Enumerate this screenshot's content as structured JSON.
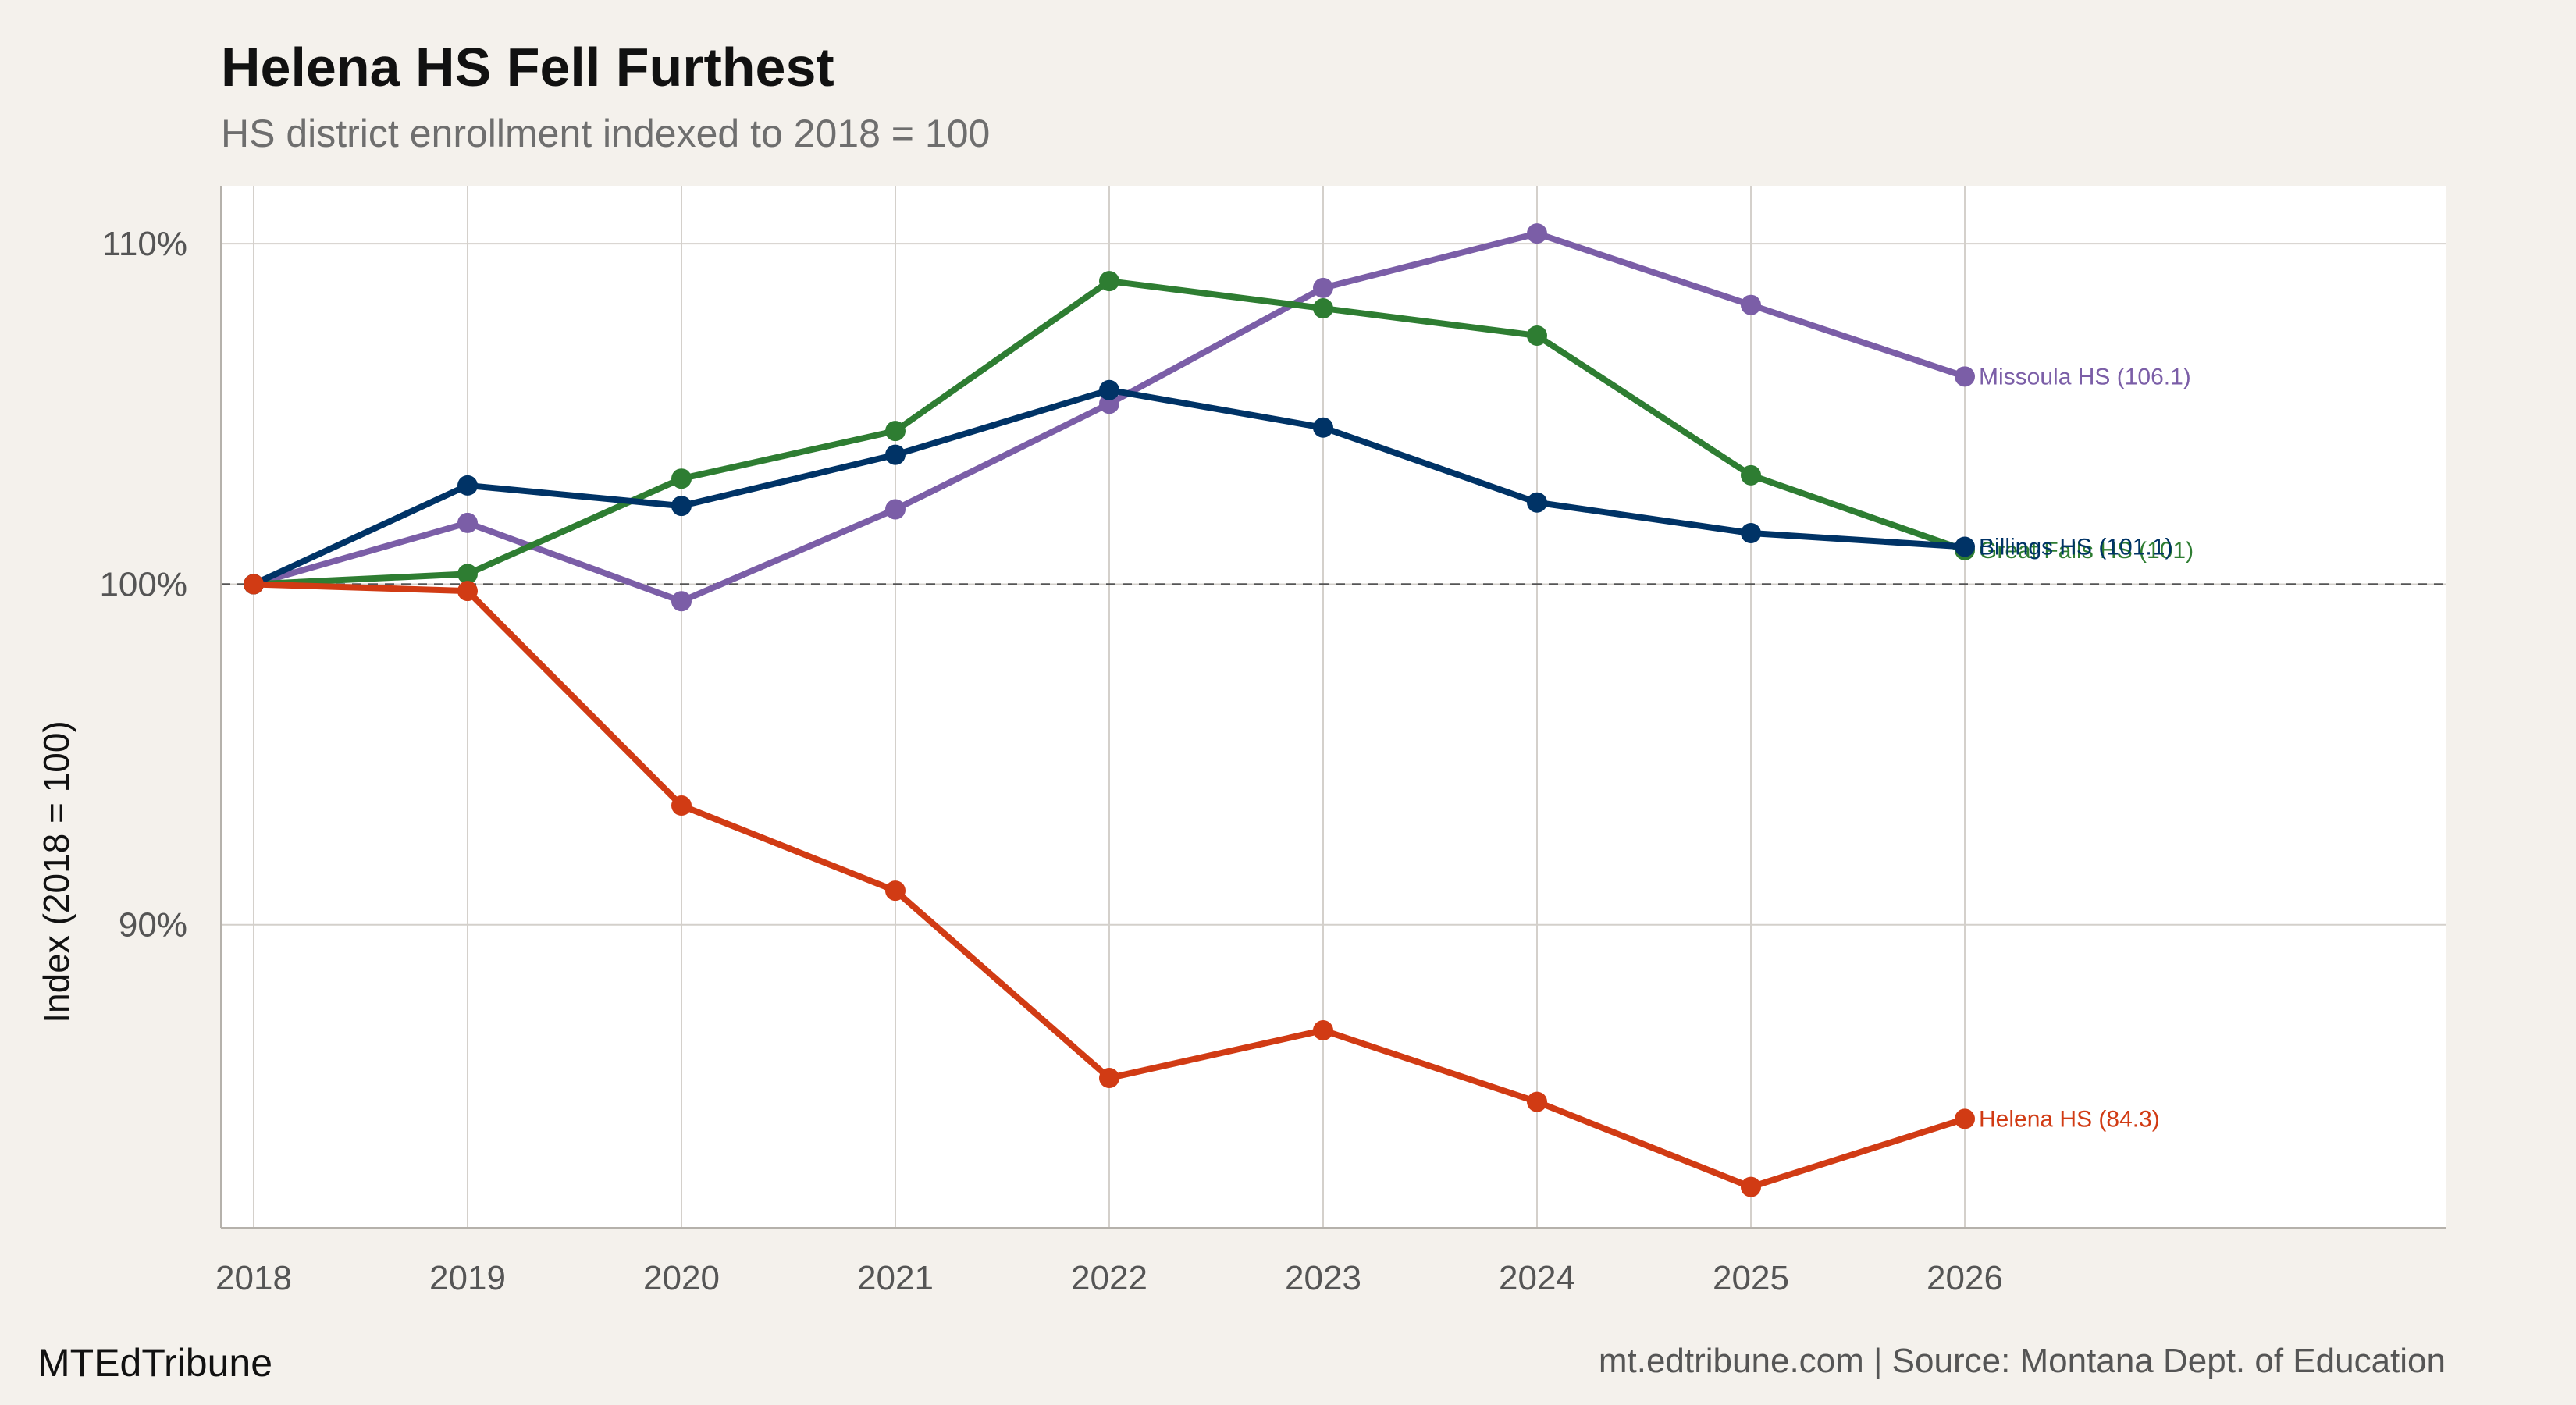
{
  "header": {
    "title": "Helena HS Fell Furthest",
    "subtitle": "HS district enrollment indexed to 2018 = 100"
  },
  "footer": {
    "brand": "MTEdTribune",
    "source": "mt.edtribune.com | Source: Montana Dept. of Education"
  },
  "colors": {
    "background": "#f4f1ec",
    "panel": "#ffffff",
    "grid": "#d4d0cb",
    "reference": "#555555"
  },
  "chart_data": {
    "type": "line",
    "title": "Helena HS Fell Furthest",
    "subtitle": "HS district enrollment indexed to 2018 = 100",
    "xlabel": "",
    "ylabel": "Index (2018 = 100)",
    "x": [
      2018,
      2019,
      2020,
      2021,
      2022,
      2023,
      2024,
      2025,
      2026
    ],
    "xlim": [
      2017.9,
      2028.5
    ],
    "ylim": [
      81.1,
      111.7
    ],
    "y_ticks": [
      90,
      100,
      110
    ],
    "y_tick_labels": [
      "90%",
      "100%",
      "110%"
    ],
    "x_tick_labels": [
      "2018",
      "2019",
      "2020",
      "2021",
      "2022",
      "2023",
      "2024",
      "2025",
      "2026"
    ],
    "reference_line": 100,
    "grid": true,
    "legend": "direct labels at line ends",
    "series": [
      {
        "name": "Missoula HS",
        "color": "#7b5ea7",
        "values": [
          100,
          101.8,
          99.5,
          102.2,
          105.3,
          108.7,
          110.3,
          108.2,
          106.1
        ],
        "end_label": "Missoula HS (106.1)"
      },
      {
        "name": "Great Falls HS",
        "color": "#2e7d32",
        "values": [
          100,
          100.3,
          103.1,
          104.5,
          108.9,
          108.1,
          107.3,
          103.2,
          101.0
        ],
        "end_label": "Great Falls HS (101)"
      },
      {
        "name": "Billings HS",
        "color": "#003366",
        "values": [
          100,
          102.9,
          102.3,
          103.8,
          105.7,
          104.6,
          102.4,
          101.5,
          101.1
        ],
        "end_label": "Billings HS (101.1)"
      },
      {
        "name": "Helena HS",
        "color": "#d13b14",
        "values": [
          100,
          99.8,
          93.5,
          91.0,
          85.5,
          86.9,
          84.8,
          82.3,
          84.3
        ],
        "end_label": "Helena HS (84.3)"
      }
    ]
  }
}
